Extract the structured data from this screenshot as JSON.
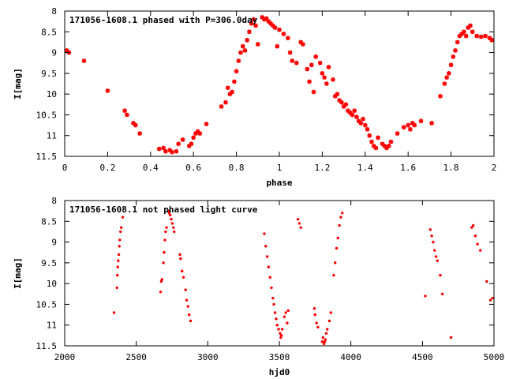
{
  "chart_data": [
    {
      "type": "scatter",
      "title": "171056-1608.1 phased with P=306.0day",
      "xlabel": "phase",
      "ylabel": "I[mag]",
      "xlim": [
        0,
        2
      ],
      "ylim": [
        8,
        11.5
      ],
      "y_inverted": true,
      "x_ticks": [
        "0",
        "0.2",
        "0.4",
        "0.6",
        "0.8",
        "1",
        "1.2",
        "1.4",
        "1.6",
        "1.8",
        "2"
      ],
      "y_ticks": [
        "8",
        "8.5",
        "9",
        "9.5",
        "10",
        "10.5",
        "11",
        "11.5"
      ],
      "grid": false,
      "marker_color": "#ff0000",
      "series": [
        {
          "points": [
            [
              0.01,
              8.95
            ],
            [
              0.02,
              9.0
            ],
            [
              0.09,
              9.2
            ],
            [
              0.2,
              9.92
            ],
            [
              0.28,
              10.4
            ],
            [
              0.29,
              10.5
            ],
            [
              0.32,
              10.7
            ],
            [
              0.33,
              10.75
            ],
            [
              0.35,
              10.95
            ],
            [
              0.44,
              11.32
            ],
            [
              0.46,
              11.3
            ],
            [
              0.47,
              11.38
            ],
            [
              0.49,
              11.35
            ],
            [
              0.5,
              11.4
            ],
            [
              0.52,
              11.38
            ],
            [
              0.53,
              11.2
            ],
            [
              0.55,
              11.1
            ],
            [
              0.58,
              11.25
            ],
            [
              0.59,
              11.2
            ],
            [
              0.6,
              11.05
            ],
            [
              0.61,
              10.95
            ],
            [
              0.62,
              10.9
            ],
            [
              0.63,
              10.95
            ],
            [
              0.66,
              10.72
            ],
            [
              0.73,
              10.3
            ],
            [
              0.75,
              10.2
            ],
            [
              0.76,
              9.85
            ],
            [
              0.77,
              10.0
            ],
            [
              0.78,
              9.95
            ],
            [
              0.79,
              9.7
            ],
            [
              0.8,
              9.45
            ],
            [
              0.81,
              9.2
            ],
            [
              0.82,
              9.0
            ],
            [
              0.83,
              8.85
            ],
            [
              0.84,
              8.95
            ],
            [
              0.85,
              8.7
            ],
            [
              0.86,
              8.5
            ],
            [
              0.87,
              8.3
            ],
            [
              0.88,
              8.2
            ],
            [
              0.89,
              8.35
            ],
            [
              0.9,
              8.8
            ],
            [
              0.92,
              8.15
            ],
            [
              0.93,
              8.2
            ],
            [
              0.94,
              8.18
            ],
            [
              0.95,
              8.25
            ],
            [
              0.96,
              8.3
            ],
            [
              0.97,
              8.35
            ],
            [
              0.98,
              8.4
            ],
            [
              0.99,
              8.85
            ],
            [
              1.0,
              8.45
            ],
            [
              1.02,
              8.55
            ],
            [
              1.04,
              8.65
            ],
            [
              1.05,
              9.0
            ],
            [
              1.06,
              9.2
            ],
            [
              1.08,
              9.25
            ],
            [
              1.1,
              8.75
            ],
            [
              1.11,
              8.8
            ],
            [
              1.13,
              9.4
            ],
            [
              1.14,
              9.7
            ],
            [
              1.15,
              9.3
            ],
            [
              1.16,
              9.95
            ],
            [
              1.17,
              9.1
            ],
            [
              1.19,
              9.25
            ],
            [
              1.2,
              9.5
            ],
            [
              1.21,
              9.6
            ],
            [
              1.22,
              9.75
            ],
            [
              1.23,
              9.35
            ],
            [
              1.25,
              9.65
            ],
            [
              1.26,
              10.05
            ],
            [
              1.27,
              10.0
            ],
            [
              1.28,
              10.15
            ],
            [
              1.29,
              10.2
            ],
            [
              1.3,
              10.3
            ],
            [
              1.31,
              10.25
            ],
            [
              1.32,
              10.4
            ],
            [
              1.33,
              10.45
            ],
            [
              1.34,
              10.5
            ],
            [
              1.35,
              10.4
            ],
            [
              1.36,
              10.55
            ],
            [
              1.37,
              10.65
            ],
            [
              1.38,
              10.7
            ],
            [
              1.39,
              10.6
            ],
            [
              1.4,
              10.75
            ],
            [
              1.41,
              10.85
            ],
            [
              1.42,
              11.0
            ],
            [
              1.43,
              11.15
            ],
            [
              1.44,
              11.25
            ],
            [
              1.45,
              11.3
            ],
            [
              1.46,
              11.05
            ],
            [
              1.48,
              11.2
            ],
            [
              1.49,
              11.25
            ],
            [
              1.5,
              11.3
            ],
            [
              1.51,
              11.25
            ],
            [
              1.52,
              11.15
            ],
            [
              1.55,
              10.95
            ],
            [
              1.58,
              10.8
            ],
            [
              1.6,
              10.75
            ],
            [
              1.61,
              10.85
            ],
            [
              1.62,
              10.7
            ],
            [
              1.63,
              10.75
            ],
            [
              1.66,
              10.65
            ],
            [
              1.71,
              10.7
            ],
            [
              1.75,
              10.05
            ],
            [
              1.77,
              9.75
            ],
            [
              1.78,
              9.6
            ],
            [
              1.79,
              9.5
            ],
            [
              1.8,
              9.3
            ],
            [
              1.81,
              9.1
            ],
            [
              1.82,
              8.95
            ],
            [
              1.83,
              8.75
            ],
            [
              1.84,
              8.6
            ],
            [
              1.85,
              8.55
            ],
            [
              1.86,
              8.5
            ],
            [
              1.87,
              8.6
            ],
            [
              1.88,
              8.4
            ],
            [
              1.89,
              8.35
            ],
            [
              1.9,
              8.5
            ],
            [
              1.92,
              8.6
            ],
            [
              1.94,
              8.62
            ],
            [
              1.96,
              8.6
            ],
            [
              1.98,
              8.65
            ],
            [
              1.99,
              8.7
            ]
          ]
        }
      ]
    },
    {
      "type": "scatter",
      "title": "171056-1608.1 not phased light curve",
      "xlabel": "hjd0",
      "ylabel": "I[mag]",
      "xlim": [
        2000,
        5000
      ],
      "ylim": [
        8,
        11.5
      ],
      "y_inverted": true,
      "x_ticks": [
        "2000",
        "2500",
        "3000",
        "3500",
        "4000",
        "4500",
        "5000"
      ],
      "y_ticks": [
        "8",
        "8.5",
        "9",
        "9.5",
        "10",
        "10.5",
        "11",
        "11.5"
      ],
      "grid": false,
      "marker_color": "#ff0000",
      "series": [
        {
          "points": [
            [
              2345,
              10.7
            ],
            [
              2365,
              10.1
            ],
            [
              2368,
              9.8
            ],
            [
              2371,
              9.6
            ],
            [
              2374,
              9.45
            ],
            [
              2378,
              9.3
            ],
            [
              2382,
              9.1
            ],
            [
              2385,
              8.95
            ],
            [
              2390,
              8.75
            ],
            [
              2395,
              8.65
            ],
            [
              2405,
              8.4
            ],
            [
              2670,
              10.2
            ],
            [
              2675,
              9.95
            ],
            [
              2680,
              9.9
            ],
            [
              2690,
              9.5
            ],
            [
              2695,
              9.25
            ],
            [
              2700,
              8.95
            ],
            [
              2705,
              8.75
            ],
            [
              2712,
              8.65
            ],
            [
              2725,
              8.25
            ],
            [
              2730,
              8.3
            ],
            [
              2737,
              8.35
            ],
            [
              2745,
              8.45
            ],
            [
              2752,
              8.55
            ],
            [
              2760,
              8.65
            ],
            [
              2765,
              8.75
            ],
            [
              2805,
              9.3
            ],
            [
              2810,
              9.4
            ],
            [
              2820,
              9.7
            ],
            [
              2830,
              9.85
            ],
            [
              2845,
              10.15
            ],
            [
              2852,
              10.4
            ],
            [
              2862,
              10.55
            ],
            [
              2870,
              10.75
            ],
            [
              2880,
              10.9
            ],
            [
              3395,
              8.8
            ],
            [
              3405,
              9.1
            ],
            [
              3415,
              9.35
            ],
            [
              3425,
              9.6
            ],
            [
              3435,
              9.85
            ],
            [
              3445,
              10.1
            ],
            [
              3455,
              10.35
            ],
            [
              3462,
              10.5
            ],
            [
              3470,
              10.7
            ],
            [
              3478,
              10.85
            ],
            [
              3485,
              11.0
            ],
            [
              3495,
              11.1
            ],
            [
              3505,
              11.2
            ],
            [
              3510,
              11.3
            ],
            [
              3515,
              11.25
            ],
            [
              3520,
              11.1
            ],
            [
              3535,
              10.8
            ],
            [
              3545,
              10.7
            ],
            [
              3555,
              10.95
            ],
            [
              3562,
              10.65
            ],
            [
              3630,
              8.45
            ],
            [
              3640,
              8.55
            ],
            [
              3650,
              8.65
            ],
            [
              3745,
              10.6
            ],
            [
              3750,
              10.75
            ],
            [
              3760,
              10.95
            ],
            [
              3770,
              11.05
            ],
            [
              3800,
              11.4
            ],
            [
              3805,
              11.3
            ],
            [
              3812,
              11.45
            ],
            [
              3818,
              11.4
            ],
            [
              3822,
              11.35
            ],
            [
              3828,
              11.2
            ],
            [
              3835,
              11.1
            ],
            [
              3850,
              10.9
            ],
            [
              3860,
              10.7
            ],
            [
              3880,
              9.8
            ],
            [
              3890,
              9.5
            ],
            [
              3900,
              9.15
            ],
            [
              3910,
              8.9
            ],
            [
              3920,
              8.6
            ],
            [
              3930,
              8.4
            ],
            [
              3940,
              8.3
            ],
            [
              4520,
              10.3
            ],
            [
              4555,
              8.7
            ],
            [
              4565,
              8.85
            ],
            [
              4575,
              9.0
            ],
            [
              4585,
              9.2
            ],
            [
              4595,
              9.35
            ],
            [
              4605,
              9.45
            ],
            [
              4625,
              9.8
            ],
            [
              4640,
              10.25
            ],
            [
              4700,
              11.3
            ],
            [
              4845,
              8.65
            ],
            [
              4855,
              8.6
            ],
            [
              4870,
              8.85
            ],
            [
              4885,
              9.05
            ],
            [
              4905,
              9.2
            ],
            [
              4950,
              9.95
            ],
            [
              4975,
              10.4
            ],
            [
              4990,
              10.35
            ]
          ]
        }
      ]
    }
  ]
}
